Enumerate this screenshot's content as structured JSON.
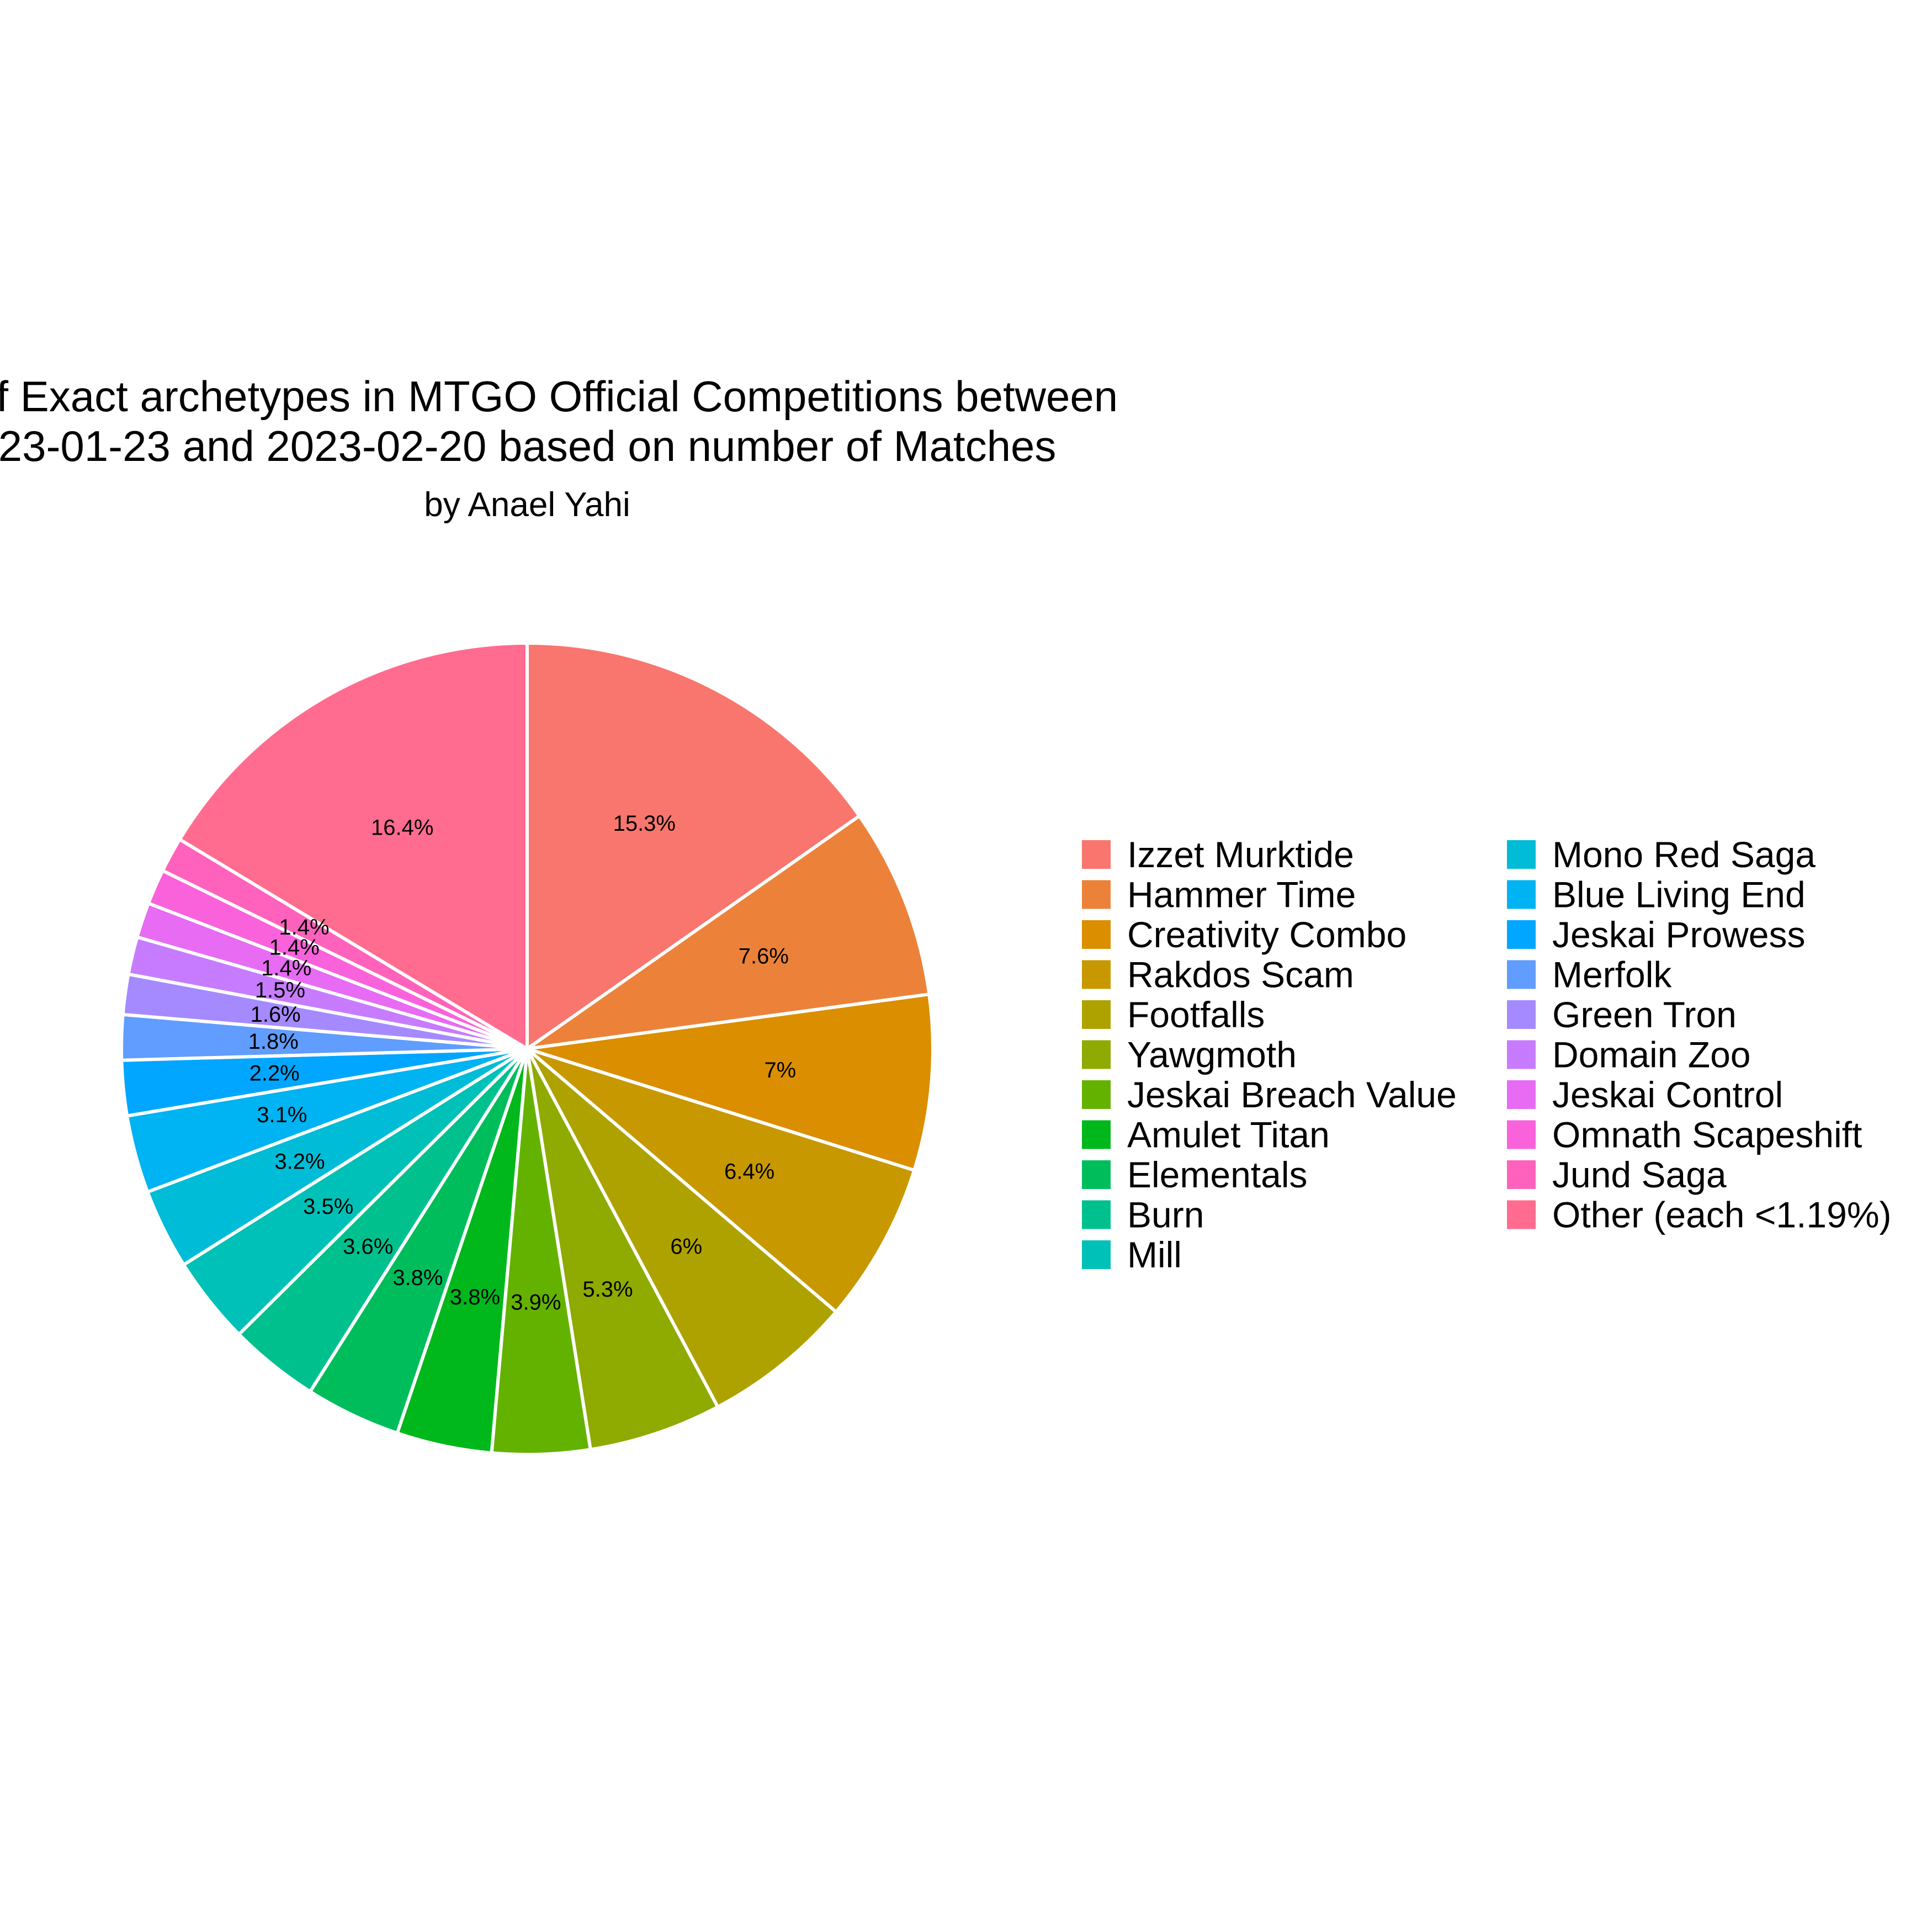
{
  "chart_data": {
    "type": "pie",
    "title_lines": [
      "n of Exact archetypes in MTGO Official Competitions between",
      "23-01-23 and 2023-02-20 based on number of Matches"
    ],
    "subtitle": "by Anael Yahi",
    "legend_position": "right",
    "slices": [
      {
        "name": "Izzet Murktide",
        "value": 15.3,
        "label": "15.3%",
        "color": "#F8766D"
      },
      {
        "name": "Hammer Time",
        "value": 7.6,
        "label": "7.6%",
        "color": "#EC8239"
      },
      {
        "name": "Creativity Combo",
        "value": 7.0,
        "label": "7%",
        "color": "#DB8E00"
      },
      {
        "name": "Rakdos Scam",
        "value": 6.4,
        "label": "6.4%",
        "color": "#C79800"
      },
      {
        "name": "Footfalls",
        "value": 6.0,
        "label": "6%",
        "color": "#AEA200"
      },
      {
        "name": "Yawgmoth",
        "value": 5.3,
        "label": "5.3%",
        "color": "#8FAA00"
      },
      {
        "name": "Jeskai Breach Value",
        "value": 3.9,
        "label": "3.9%",
        "color": "#64B200"
      },
      {
        "name": "Amulet Titan",
        "value": 3.8,
        "label": "3.8%",
        "color": "#00B81B"
      },
      {
        "name": "Elementals",
        "value": 3.8,
        "label": "3.8%",
        "color": "#00BD5C"
      },
      {
        "name": "Burn",
        "value": 3.6,
        "label": "3.6%",
        "color": "#00C08E"
      },
      {
        "name": "Mill",
        "value": 3.5,
        "label": "3.5%",
        "color": "#00C1B7"
      },
      {
        "name": "Mono Red Saga",
        "value": 3.2,
        "label": "3.2%",
        "color": "#00BCD6"
      },
      {
        "name": "Blue Living End",
        "value": 3.1,
        "label": "3.1%",
        "color": "#00B3F2"
      },
      {
        "name": "Jeskai Prowess",
        "value": 2.2,
        "label": "2.2%",
        "color": "#00A6FF"
      },
      {
        "name": "Merfolk",
        "value": 1.8,
        "label": "1.8%",
        "color": "#619CFF"
      },
      {
        "name": "Green Tron",
        "value": 1.6,
        "label": "1.6%",
        "color": "#A58AFF"
      },
      {
        "name": "Domain Zoo",
        "value": 1.5,
        "label": "1.5%",
        "color": "#C77CFF"
      },
      {
        "name": "Jeskai Control",
        "value": 1.4,
        "label": "1.4%",
        "color": "#E76BF3"
      },
      {
        "name": "Omnath Scapeshift",
        "value": 1.4,
        "label": "1.4%",
        "color": "#FA62DB"
      },
      {
        "name": "Jund Saga",
        "value": 1.4,
        "label": "1.4%",
        "color": "#FF62BC"
      },
      {
        "name": "Other (each <1.19%)",
        "value": 16.4,
        "label": "16.4%",
        "color": "#FF6C90"
      }
    ]
  }
}
